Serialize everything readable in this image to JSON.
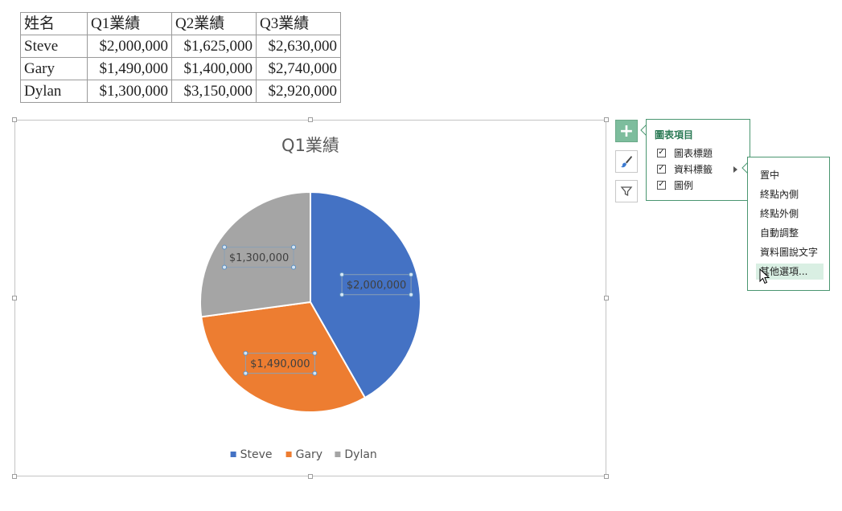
{
  "table": {
    "headers": [
      "姓名",
      "Q1業績",
      "Q2業績",
      "Q3業績"
    ],
    "rows": [
      [
        "Steve",
        "$2,000,000",
        "$1,625,000",
        "$2,630,000"
      ],
      [
        "Gary",
        "$1,490,000",
        "$1,400,000",
        "$2,740,000"
      ],
      [
        "Dylan",
        "$1,300,000",
        "$3,150,000",
        "$2,920,000"
      ]
    ]
  },
  "chart_data": {
    "type": "pie",
    "title": "Q1業績",
    "categories": [
      "Steve",
      "Gary",
      "Dylan"
    ],
    "values": [
      2000000,
      1490000,
      1300000
    ],
    "data_labels": [
      "$2,000,000",
      "$1,490,000",
      "$1,300,000"
    ],
    "colors": [
      "#4472c4",
      "#ed7d31",
      "#a5a5a5"
    ],
    "legend_position": "bottom"
  },
  "side_buttons": {
    "plus": "+",
    "plus_icon": "plus-icon",
    "style_icon": "brush-icon",
    "filter_icon": "filter-icon"
  },
  "elements_panel": {
    "title": "圖表項目",
    "items": [
      {
        "label": "圖表標題",
        "checked": true
      },
      {
        "label": "資料標籤",
        "checked": true
      },
      {
        "label": "圖例",
        "checked": true
      }
    ]
  },
  "label_submenu": {
    "items": [
      "置中",
      "終點內側",
      "終點外側",
      "自動調整",
      "資料圖說文字",
      "其他選項..."
    ],
    "highlighted_index": 5
  },
  "accent_color": "#4a9670"
}
